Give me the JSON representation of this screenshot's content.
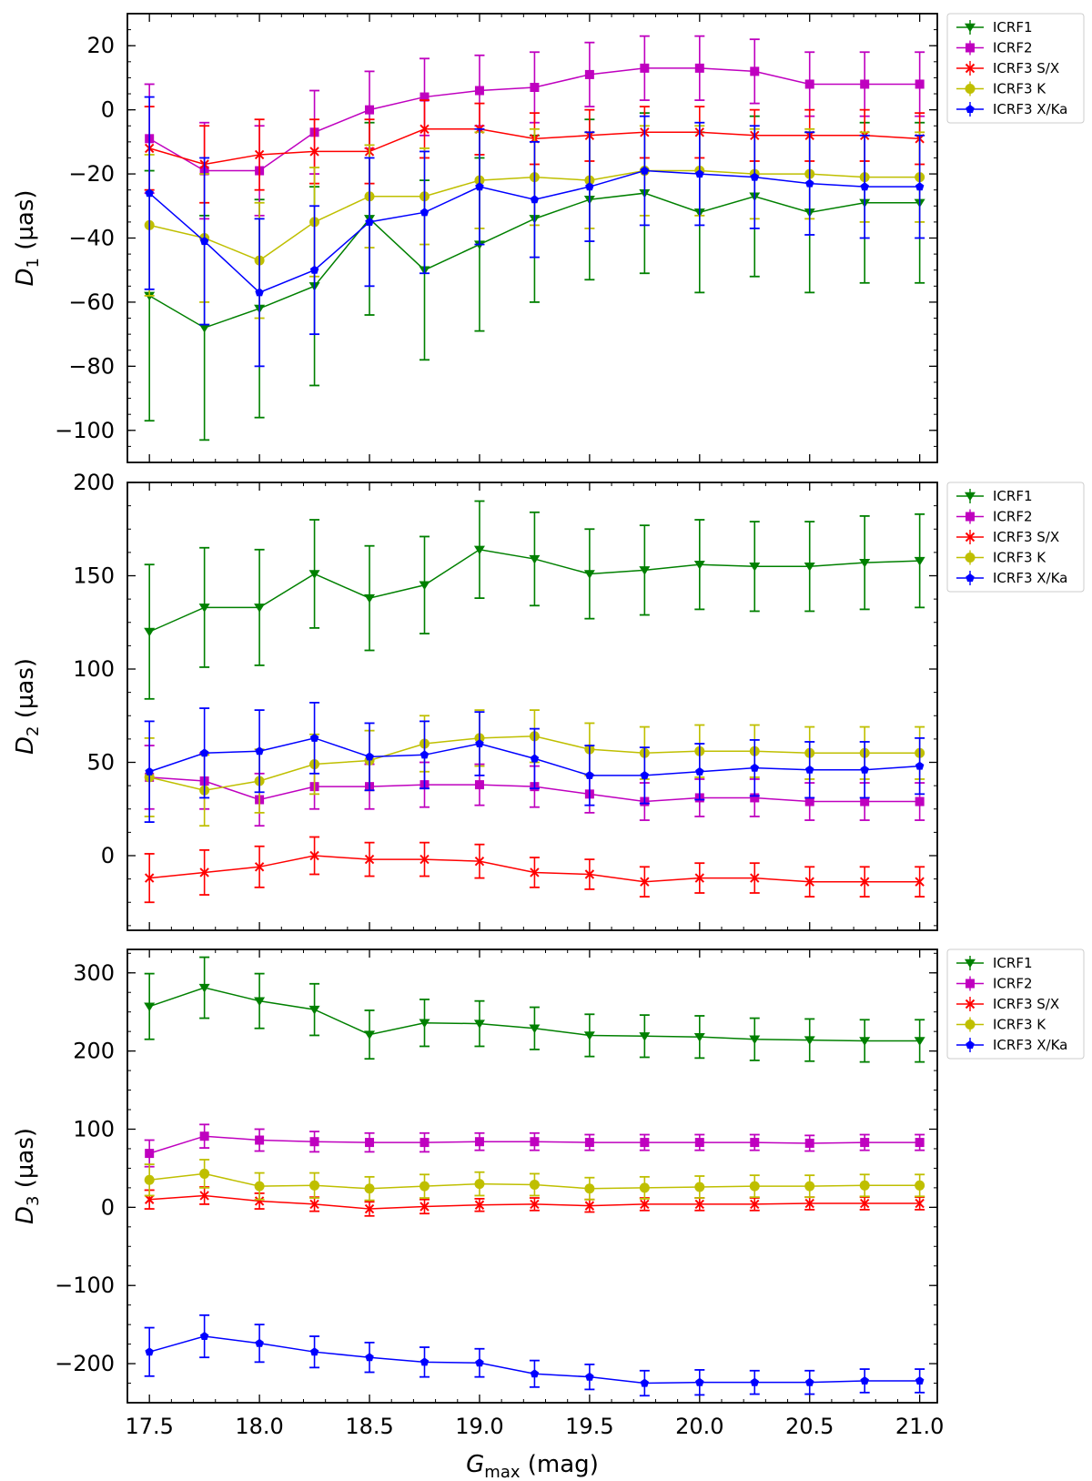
{
  "chart_data": [
    {
      "type": "line",
      "panel": "top",
      "ylabel": "D1 (µas)",
      "ylabel_main": "D",
      "ylabel_sub": "1",
      "ylabel_unit": " (µas)",
      "xlabel": "",
      "ylim": [
        -110,
        30
      ],
      "yticks": [
        "20",
        "0",
        "−20",
        "−40",
        "−60",
        "−80",
        "−100"
      ],
      "yticks_values": [
        20,
        0,
        -20,
        -40,
        -60,
        -80,
        -100
      ],
      "legend": "top-right-outside",
      "x": [
        17.5,
        17.75,
        18.0,
        18.25,
        18.5,
        18.75,
        19.0,
        19.25,
        19.5,
        19.75,
        20.0,
        20.25,
        20.5,
        20.75,
        21.0
      ],
      "series": [
        {
          "name": "ICRF1",
          "color": "#008000",
          "marker": "triangle-down",
          "values": [
            -58,
            -68,
            -62,
            -55,
            -34,
            -50,
            -42,
            -34,
            -28,
            -26,
            -32,
            -27,
            -32,
            -29,
            -29
          ],
          "errors": [
            39,
            35,
            34,
            31,
            30,
            28,
            27,
            26,
            25,
            25,
            25,
            25,
            25,
            25,
            25
          ]
        },
        {
          "name": "ICRF2",
          "color": "#bf00bf",
          "marker": "square",
          "values": [
            -9,
            -19,
            -19,
            -7,
            0,
            4,
            6,
            7,
            11,
            13,
            13,
            12,
            8,
            8,
            8
          ],
          "errors": [
            17,
            15,
            14,
            13,
            12,
            12,
            11,
            11,
            10,
            10,
            10,
            10,
            10,
            10,
            10
          ]
        },
        {
          "name": "ICRF3 S/X",
          "color": "#ff0000",
          "marker": "x",
          "values": [
            -12,
            -17,
            -14,
            -13,
            -13,
            -6,
            -6,
            -9,
            -8,
            -7,
            -7,
            -8,
            -8,
            -8,
            -9
          ],
          "errors": [
            13,
            12,
            11,
            10,
            10,
            9,
            8,
            8,
            8,
            8,
            8,
            8,
            8,
            8,
            8
          ]
        },
        {
          "name": "ICRF3 K",
          "color": "#bfbf00",
          "marker": "circle",
          "values": [
            -36,
            -40,
            -47,
            -35,
            -27,
            -27,
            -22,
            -21,
            -22,
            -19,
            -19,
            -20,
            -20,
            -21,
            -21
          ],
          "errors": [
            22,
            20,
            18,
            17,
            16,
            15,
            15,
            15,
            15,
            14,
            14,
            14,
            14,
            14,
            14
          ]
        },
        {
          "name": "ICRF3 X/Ka",
          "color": "#0000ff",
          "marker": "pentagon",
          "values": [
            -26,
            -41,
            -57,
            -50,
            -35,
            -32,
            -24,
            -28,
            -24,
            -19,
            -20,
            -21,
            -23,
            -24,
            -24
          ],
          "errors": [
            30,
            26,
            23,
            20,
            20,
            19,
            18,
            18,
            17,
            17,
            16,
            16,
            16,
            16,
            16
          ]
        }
      ]
    },
    {
      "type": "line",
      "panel": "middle",
      "ylabel": "D2 (µas)",
      "ylabel_main": "D",
      "ylabel_sub": "2",
      "ylabel_unit": " (µas)",
      "xlabel": "",
      "ylim": [
        -40,
        200
      ],
      "yticks": [
        "200",
        "150",
        "100",
        "50",
        "0"
      ],
      "yticks_values": [
        200,
        150,
        100,
        50,
        0
      ],
      "legend": "top-right-outside",
      "x": [
        17.5,
        17.75,
        18.0,
        18.25,
        18.5,
        18.75,
        19.0,
        19.25,
        19.5,
        19.75,
        20.0,
        20.25,
        20.5,
        20.75,
        21.0
      ],
      "series": [
        {
          "name": "ICRF1",
          "color": "#008000",
          "marker": "triangle-down",
          "values": [
            120,
            133,
            133,
            151,
            138,
            145,
            164,
            159,
            151,
            153,
            156,
            155,
            155,
            157,
            158
          ],
          "errors": [
            36,
            32,
            31,
            29,
            28,
            26,
            26,
            25,
            24,
            24,
            24,
            24,
            24,
            25,
            25
          ]
        },
        {
          "name": "ICRF2",
          "color": "#bf00bf",
          "marker": "square",
          "values": [
            42,
            40,
            30,
            37,
            37,
            38,
            38,
            37,
            33,
            29,
            31,
            31,
            29,
            29,
            29
          ],
          "errors": [
            17,
            15,
            14,
            12,
            12,
            12,
            11,
            11,
            10,
            10,
            10,
            10,
            10,
            10,
            10
          ]
        },
        {
          "name": "ICRF3 S/X",
          "color": "#ff0000",
          "marker": "x",
          "values": [
            -12,
            -9,
            -6,
            0,
            -2,
            -2,
            -3,
            -9,
            -10,
            -14,
            -12,
            -12,
            -14,
            -14,
            -14
          ],
          "errors": [
            13,
            12,
            11,
            10,
            9,
            9,
            9,
            8,
            8,
            8,
            8,
            8,
            8,
            8,
            8
          ]
        },
        {
          "name": "ICRF3 K",
          "color": "#bfbf00",
          "marker": "circle",
          "values": [
            42,
            35,
            40,
            49,
            51,
            60,
            63,
            64,
            57,
            55,
            56,
            56,
            55,
            55,
            55
          ],
          "errors": [
            21,
            19,
            17,
            16,
            16,
            15,
            15,
            14,
            14,
            14,
            14,
            14,
            14,
            14,
            14
          ]
        },
        {
          "name": "ICRF3 X/Ka",
          "color": "#0000ff",
          "marker": "pentagon",
          "values": [
            45,
            55,
            56,
            63,
            53,
            54,
            60,
            52,
            43,
            43,
            45,
            47,
            46,
            46,
            48
          ],
          "errors": [
            27,
            24,
            22,
            19,
            18,
            18,
            17,
            16,
            16,
            15,
            15,
            15,
            15,
            15,
            15
          ]
        }
      ]
    },
    {
      "type": "line",
      "panel": "bottom",
      "ylabel": "D3 (µas)",
      "ylabel_main": "D",
      "ylabel_sub": "3",
      "ylabel_unit": " (µas)",
      "xlabel": "Gmax (mag)",
      "xlabel_main": "G",
      "xlabel_sub": "max",
      "xlabel_unit": " (mag)",
      "xticks": [
        "17.5",
        "18.0",
        "18.5",
        "19.0",
        "19.5",
        "20.0",
        "20.5",
        "21.0"
      ],
      "xticks_values": [
        17.5,
        18.0,
        18.5,
        19.0,
        19.5,
        20.0,
        20.5,
        21.0
      ],
      "ylim": [
        -250,
        330
      ],
      "yticks": [
        "300",
        "200",
        "100",
        "0",
        "−100",
        "−200"
      ],
      "yticks_values": [
        300,
        200,
        100,
        0,
        -100,
        -200
      ],
      "legend": "top-right-outside",
      "x": [
        17.5,
        17.75,
        18.0,
        18.25,
        18.5,
        18.75,
        19.0,
        19.25,
        19.5,
        19.75,
        20.0,
        20.25,
        20.5,
        20.75,
        21.0
      ],
      "series": [
        {
          "name": "ICRF1",
          "color": "#008000",
          "marker": "triangle-down",
          "values": [
            257,
            281,
            264,
            253,
            221,
            236,
            235,
            229,
            220,
            219,
            218,
            215,
            214,
            213,
            213
          ],
          "errors": [
            42,
            39,
            35,
            33,
            31,
            30,
            29,
            27,
            27,
            27,
            27,
            27,
            27,
            27,
            27
          ]
        },
        {
          "name": "ICRF2",
          "color": "#bf00bf",
          "marker": "square",
          "values": [
            69,
            91,
            86,
            84,
            83,
            83,
            84,
            84,
            83,
            83,
            83,
            83,
            82,
            83,
            83
          ],
          "errors": [
            17,
            15,
            14,
            13,
            12,
            12,
            11,
            11,
            10,
            10,
            10,
            10,
            10,
            10,
            10
          ]
        },
        {
          "name": "ICRF3 S/X",
          "color": "#ff0000",
          "marker": "x",
          "values": [
            10,
            15,
            8,
            4,
            -2,
            1,
            3,
            4,
            2,
            4,
            4,
            4,
            5,
            5,
            5
          ],
          "errors": [
            12,
            11,
            10,
            9,
            9,
            9,
            8,
            8,
            8,
            8,
            8,
            8,
            8,
            8,
            8
          ]
        },
        {
          "name": "ICRF3 K",
          "color": "#bfbf00",
          "marker": "circle",
          "values": [
            35,
            43,
            27,
            28,
            24,
            27,
            30,
            29,
            24,
            25,
            26,
            27,
            27,
            28,
            28
          ],
          "errors": [
            20,
            18,
            17,
            16,
            15,
            15,
            15,
            14,
            14,
            14,
            14,
            14,
            14,
            14,
            14
          ]
        },
        {
          "name": "ICRF3 X/Ka",
          "color": "#0000ff",
          "marker": "pentagon",
          "values": [
            -185,
            -165,
            -174,
            -185,
            -192,
            -198,
            -199,
            -213,
            -217,
            -225,
            -224,
            -224,
            -224,
            -222,
            -222
          ],
          "errors": [
            31,
            27,
            24,
            20,
            19,
            19,
            18,
            17,
            16,
            16,
            16,
            15,
            15,
            15,
            15
          ]
        }
      ]
    }
  ]
}
